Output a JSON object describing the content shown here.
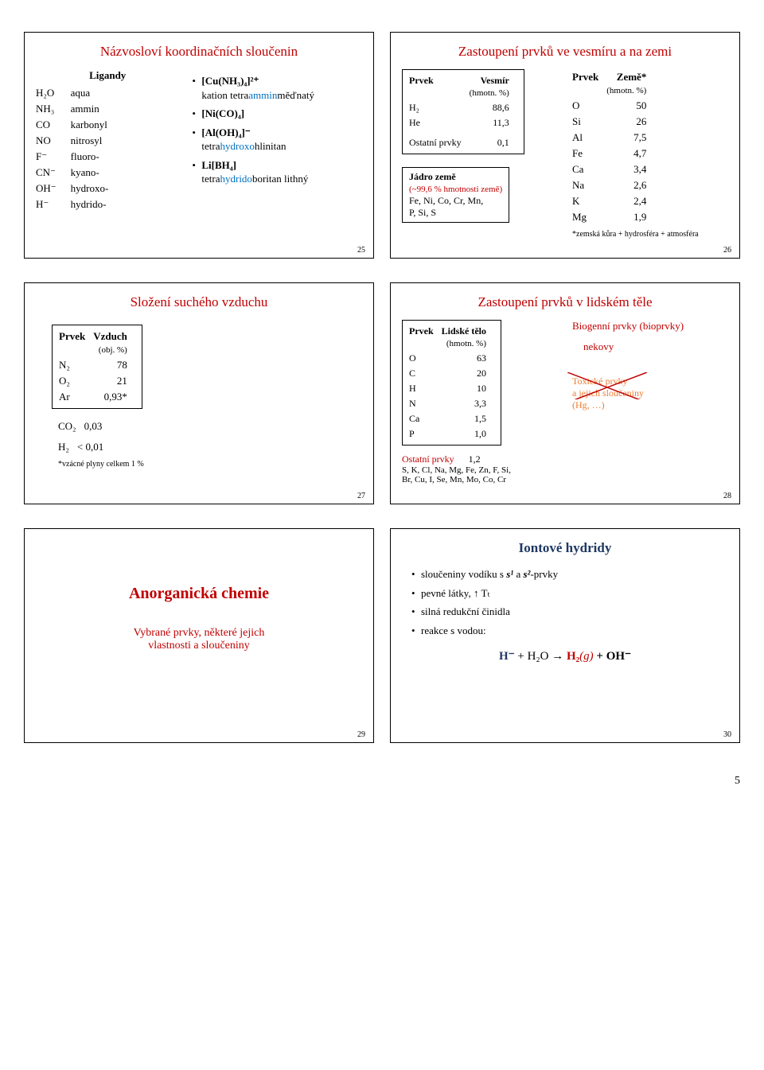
{
  "page_number": "5",
  "slide25": {
    "num": "25",
    "title": "Názvosloví koordinačních sloučenin",
    "ligands_head": "Ligandy",
    "ligands": [
      [
        "H₂O",
        "aqua"
      ],
      [
        "NH₃",
        "ammin"
      ],
      [
        "CO",
        "karbonyl"
      ],
      [
        "NO",
        "nitrosyl"
      ],
      [
        "F⁻",
        "fluoro-"
      ],
      [
        "CN⁻",
        "kyano-"
      ],
      [
        "OH⁻",
        "hydroxo-"
      ],
      [
        "H⁻",
        "hydrido-"
      ]
    ],
    "ex1_f": "[Cu(NH₃)₄]²⁺",
    "ex1_l1a": "kation tetra",
    "ex1_l1b": "ammin",
    "ex1_l1c": "měďnatý",
    "ex2_f": "[Ni(CO)₄]",
    "ex3_f": "[Al(OH)₄]⁻",
    "ex3_l1a": "tetra",
    "ex3_l1b": "hydroxo",
    "ex3_l1c": "hlinitan",
    "ex4_f": "Li[BH₄]",
    "ex4_l1a": "tetra",
    "ex4_l1b": "hydrido",
    "ex4_l1c": "boritan lithný"
  },
  "slide26": {
    "num": "26",
    "title": "Zastoupení prvků ve vesmíru a na zemi",
    "left_head1": "Prvek",
    "left_head2": "Vesmír",
    "left_unit": "(hmotn. %)",
    "left_rows": [
      [
        "H₂",
        "88,6"
      ],
      [
        "He",
        "11,3"
      ]
    ],
    "ostatni_l": "Ostatní prvky",
    "ostatni_v": "0,1",
    "core_title": "Jádro země",
    "core_sub": "(~99,6 % hmotnosti země)",
    "core_l1": "Fe, Ni, Co, Cr, Mn,",
    "core_l2": "P, Si, S",
    "right_head1": "Prvek",
    "right_head2": "Země*",
    "right_unit": "(hmotn. %)",
    "right_rows": [
      [
        "O",
        "50"
      ],
      [
        "Si",
        "26"
      ],
      [
        "Al",
        "7,5"
      ],
      [
        "Fe",
        "4,7"
      ],
      [
        "Ca",
        "3,4"
      ],
      [
        "Na",
        "2,6"
      ],
      [
        "K",
        "2,4"
      ],
      [
        "Mg",
        "1,9"
      ]
    ],
    "right_note": "*zemská kůra + hydrosféra + atmosféra"
  },
  "slide27": {
    "num": "27",
    "title": "Složení suchého vzduchu",
    "head1": "Prvek",
    "head2": "Vzduch",
    "unit": "(obj. %)",
    "rows_a": [
      [
        "N₂",
        "78"
      ],
      [
        "O₂",
        "21"
      ],
      [
        "Ar",
        "0,93*"
      ]
    ],
    "rows_b": [
      [
        "CO₂",
        "0,03"
      ]
    ],
    "rows_c": [
      [
        "H₂",
        "< 0,01"
      ]
    ],
    "note": "*vzácné plyny celkem 1 %"
  },
  "slide28": {
    "num": "28",
    "title": "Zastoupení prvků v lidském těle",
    "left_head1": "Prvek",
    "left_head2": "Lidské tělo",
    "left_unit": "(hmotn. %)",
    "rows": [
      [
        "O",
        "63"
      ],
      [
        "C",
        "20"
      ],
      [
        "H",
        "10"
      ],
      [
        "N",
        "3,3"
      ],
      [
        "Ca",
        "1,5"
      ],
      [
        "P",
        "1,0"
      ]
    ],
    "ostatni_l": "Ostatní prvky",
    "ostatni_v": "1,2",
    "ostatni_list1": "S, K, Cl, Na, Mg, Fe, Zn, F, Si,",
    "ostatni_list2": "Br, Cu, I, Se, Mn, Mo, Co, Cr",
    "bio_title": "Biogenní prvky (bioprvky)",
    "bio_sub": "nekovy",
    "tox_l1": "Toxické prvky",
    "tox_l2": "a jejich sloučeniny",
    "tox_l3": "(Hg, …)"
  },
  "slide29": {
    "num": "29",
    "title": "Anorganická chemie",
    "sub1": "Vybrané prvky, některé jejich",
    "sub2": "vlastnosti a sloučeniny"
  },
  "slide30": {
    "num": "30",
    "title": "Iontové hydridy",
    "b1a": "sloučeniny vodíku s ",
    "b1b": "s¹",
    "b1c": " a ",
    "b1d": "s²",
    "b1e": "-prvky",
    "b2": "pevné látky, ↑ Tₜ",
    "b3": "silná redukční činidla",
    "b4": "reakce s vodou:",
    "eq_a": "H⁻",
    "eq_b": " + H₂O → ",
    "eq_c": "H₂",
    "eq_d": "(g)",
    "eq_e": " + OH⁻"
  }
}
